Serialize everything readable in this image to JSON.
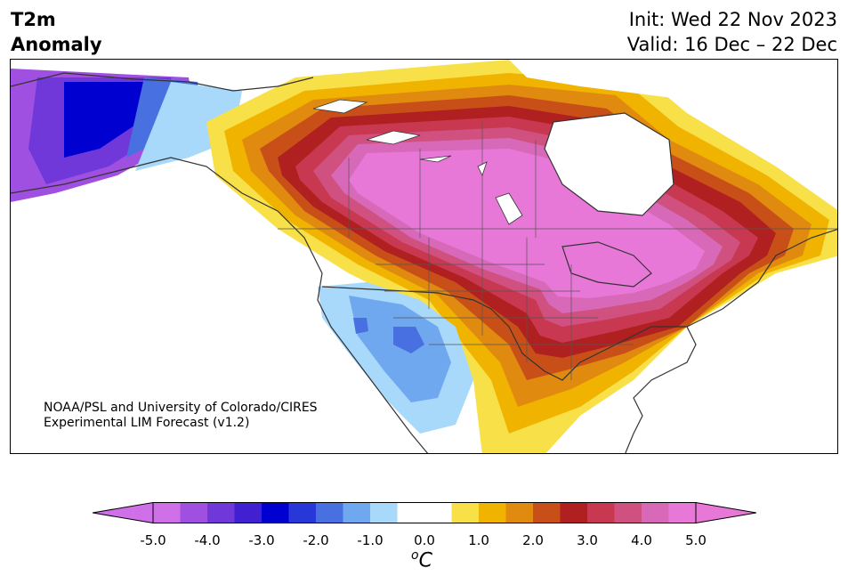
{
  "title": {
    "line1": "T2m",
    "line2": "Anomaly"
  },
  "run": {
    "init": "Init: Wed 22 Nov 2023",
    "valid": "Valid: 16 Dec – 22 Dec"
  },
  "credit": {
    "line1": "NOAA/PSL and University of Colorado/CIRES",
    "line2": "Experimental LIM Forecast (v1.2)"
  },
  "colorbar": {
    "unit_base": "C",
    "unit_sup": "o",
    "ticks": [
      "-5.0",
      "-4.0",
      "-3.0",
      "-2.0",
      "-1.0",
      "0.0",
      "1.0",
      "2.0",
      "3.0",
      "4.0",
      "5.0"
    ],
    "under_color": "#d070e8",
    "over_color": "#e878d8",
    "colors": [
      "#d070e8",
      "#a050e0",
      "#7038d8",
      "#4020d0",
      "#0000d0",
      "#2838d8",
      "#4870e0",
      "#70a8f0",
      "#a8d8fa",
      "#ffffff",
      "#ffffff",
      "#f8e048",
      "#f0b400",
      "#e08a10",
      "#c85018",
      "#b02020",
      "#c83850",
      "#d05080",
      "#d868b8",
      "#e878d8"
    ]
  },
  "map_colors": {
    "cold3": "#4870e0",
    "cold2": "#70a8f0",
    "cold1": "#a8d8fa",
    "w1": "#f8e048",
    "w2": "#f0b400",
    "w3": "#e08a10",
    "w4": "#c85018",
    "w5": "#b02020",
    "w6": "#c83850",
    "w7": "#d05080",
    "w8": "#d868b8",
    "w9": "#e878d8",
    "c_deep": "#0000d0",
    "c_blue2": "#2838d8",
    "c_purple": "#7038d8",
    "c_violet": "#a050e0"
  }
}
